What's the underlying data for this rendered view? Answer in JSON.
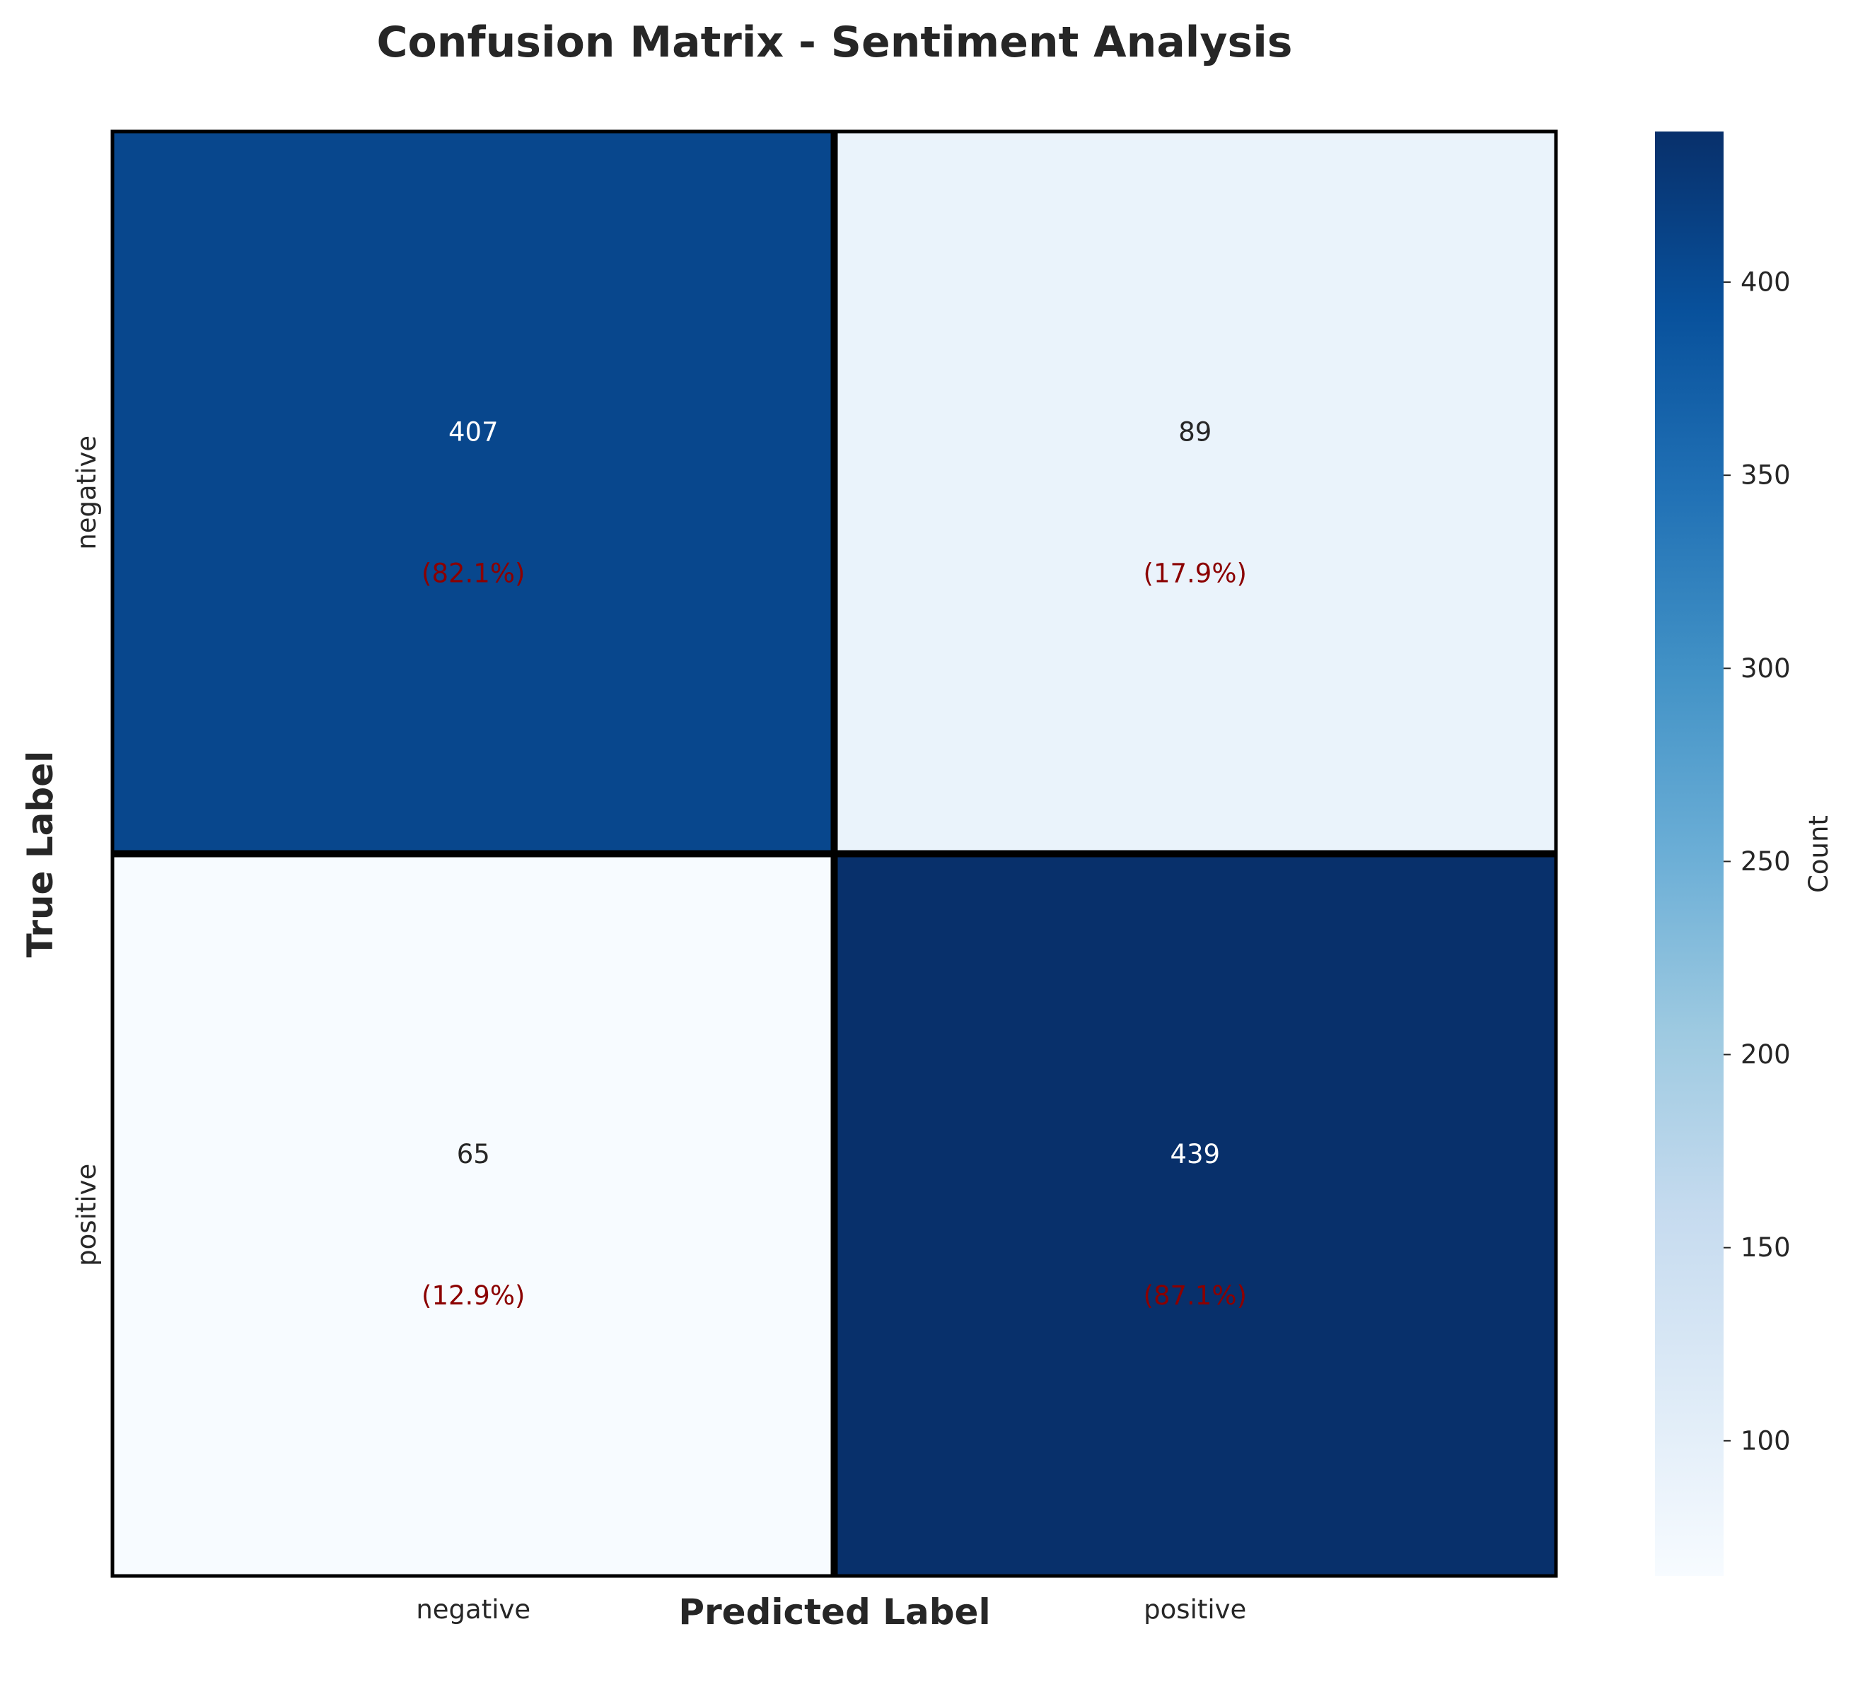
{
  "chart_data": {
    "type": "heatmap",
    "title": "Confusion Matrix - Sentiment Analysis",
    "xlabel": "Predicted Label",
    "ylabel": "True Label",
    "x_categories": [
      "negative",
      "positive"
    ],
    "y_categories": [
      "negative",
      "positive"
    ],
    "values": [
      [
        407,
        89
      ],
      [
        65,
        439
      ]
    ],
    "percent_labels": [
      [
        "(82.1%)",
        "(17.9%)"
      ],
      [
        "(12.9%)",
        "(87.1%)"
      ]
    ],
    "colorbar": {
      "label": "Count",
      "range": [
        65,
        439
      ],
      "ticks": [
        100,
        150,
        200,
        250,
        300,
        350,
        400
      ],
      "colormap": "Blues"
    },
    "colors": {
      "percent_text": "#8b0000",
      "cell_border": "#000000"
    }
  }
}
